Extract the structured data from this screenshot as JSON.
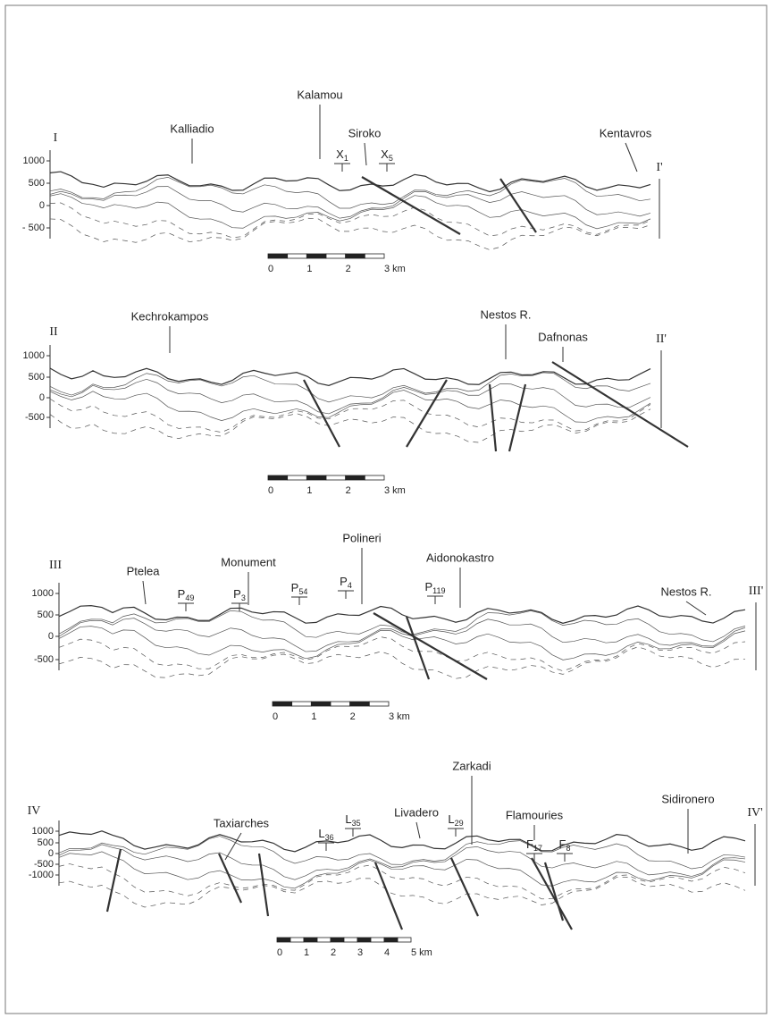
{
  "sections": [
    {
      "label": "I",
      "end_label": "I'",
      "elevations": [
        "1000",
        "500",
        "0",
        "- 500"
      ],
      "places": [
        "Kalliadio",
        "Kalamou",
        "Siroko",
        "Kentavros"
      ],
      "samples": [
        {
          "letter": "X",
          "sub": "1"
        },
        {
          "letter": "X",
          "sub": "5"
        }
      ],
      "scale": [
        "0",
        "1",
        "2",
        "3 km"
      ]
    },
    {
      "label": "II",
      "end_label": "II'",
      "elevations": [
        "1000",
        "500",
        "0",
        "-500"
      ],
      "places": [
        "Kechrokampos",
        "Nestos R.",
        "Dafnonas"
      ],
      "samples": [],
      "scale": [
        "0",
        "1",
        "2",
        "3 km"
      ]
    },
    {
      "label": "III",
      "end_label": "III'",
      "elevations": [
        "1000",
        "500",
        "0",
        "-500"
      ],
      "places": [
        "Ptelea",
        "Monument",
        "Polineri",
        "Aidonokastro",
        "Nestos R."
      ],
      "samples": [
        {
          "letter": "P",
          "sub": "49"
        },
        {
          "letter": "P",
          "sub": "3"
        },
        {
          "letter": "P",
          "sub": "54"
        },
        {
          "letter": "P",
          "sub": "4"
        },
        {
          "letter": "P",
          "sub": "119"
        }
      ],
      "scale": [
        "0",
        "1",
        "2",
        "3 km"
      ]
    },
    {
      "label": "IV",
      "end_label": "IV'",
      "elevations": [
        "1000",
        "500",
        "0",
        "-500",
        "-1000"
      ],
      "places": [
        "Taxiarches",
        "Livadero",
        "Zarkadi",
        "Flamouries",
        "Sidironero"
      ],
      "samples": [
        {
          "letter": "L",
          "sub": "36"
        },
        {
          "letter": "L",
          "sub": "35"
        },
        {
          "letter": "L",
          "sub": "29"
        },
        {
          "letter": "F",
          "sub": "17"
        },
        {
          "letter": "F",
          "sub": "8"
        }
      ],
      "scale": [
        "0",
        "1",
        "2",
        "3",
        "4",
        "5 km"
      ]
    }
  ]
}
